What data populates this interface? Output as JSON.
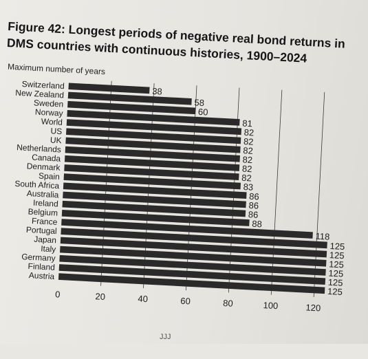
{
  "title": "Figure 42: Longest periods of negative real bond returns in DMS countries with continuous histories, 1900–2024",
  "chart_data": {
    "type": "bar",
    "orientation": "horizontal",
    "title": "Figure 42: Longest periods of negative real bond returns in DMS countries with continuous histories, 1900–2024",
    "ylabel": "Maximum number of years",
    "xlabel": "",
    "xlim": [
      0,
      125
    ],
    "xticks": [
      0,
      20,
      40,
      60,
      80,
      100,
      120
    ],
    "grid": true,
    "bar_color": "#2a2a2a",
    "categories": [
      "Switzerland",
      "New Zealand",
      "Sweden",
      "Norway",
      "World",
      "US",
      "UK",
      "Netherlands",
      "Canada",
      "Denmark",
      "Spain",
      "South Africa",
      "Australia",
      "Ireland",
      "Belgium",
      "France",
      "Portugal",
      "Japan",
      "Italy",
      "Germany",
      "Finland",
      "Austria"
    ],
    "values": [
      38,
      58,
      60,
      81,
      82,
      82,
      82,
      82,
      82,
      82,
      83,
      86,
      86,
      86,
      88,
      118,
      125,
      125,
      125,
      125,
      125,
      125
    ]
  },
  "footer": "JJJ"
}
